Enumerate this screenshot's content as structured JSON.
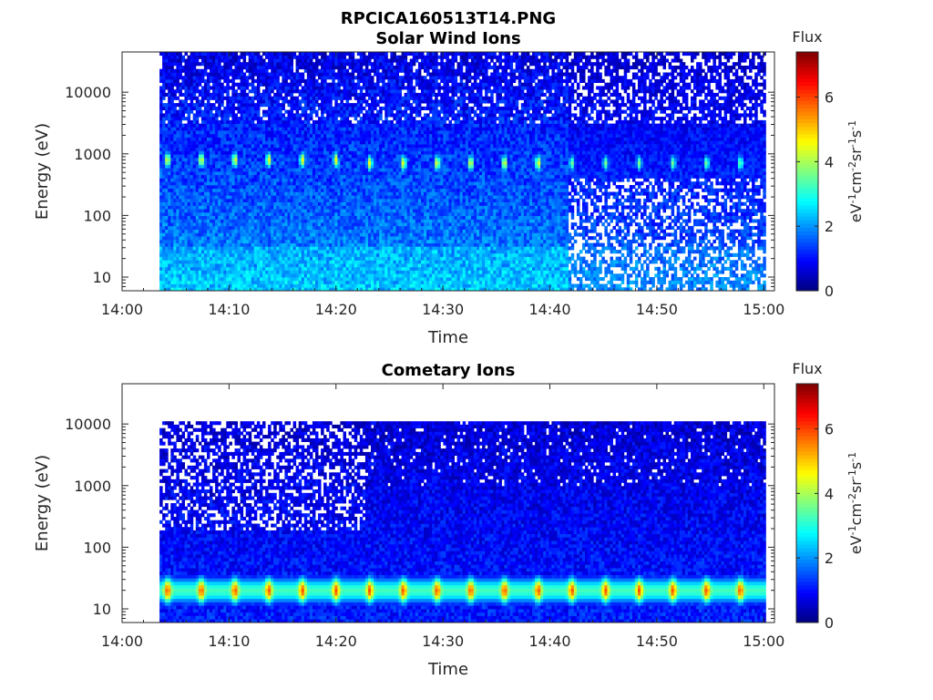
{
  "figure": {
    "title": "RPCICA160513T14.PNG"
  },
  "chart_data": [
    {
      "type": "heatmap",
      "title": "Solar Wind Ions",
      "xlabel": "Time",
      "ylabel": "Energy (eV)",
      "yscale": "log",
      "x_tick_labels": [
        "14:00",
        "14:10",
        "14:20",
        "14:30",
        "14:40",
        "14:50",
        "15:00"
      ],
      "x_ticks_min": [
        0,
        10,
        20,
        30,
        40,
        50,
        60
      ],
      "xlim_min": [
        0,
        61
      ],
      "data_start_min": 3.5,
      "y_ticks": [
        10,
        100,
        1000,
        10000
      ],
      "y_tick_labels": [
        "10",
        "100",
        "1000",
        "10000"
      ],
      "ylim": [
        6,
        45000
      ],
      "colorbar": {
        "title": "Flux",
        "label": "eV-1cm-2sr-1s-1",
        "ticks": [
          0,
          2,
          4,
          6
        ],
        "range": [
          0,
          7.4
        ]
      },
      "features": {
        "peak_energy_eV": 800,
        "peak_flux": 4.6,
        "pulse_period_min": 3.15,
        "low_energy_band_eV": [
          8,
          30
        ],
        "sparse_after_min": 41.5
      }
    },
    {
      "type": "heatmap",
      "title": "Cometary Ions",
      "xlabel": "Time",
      "ylabel": "Energy (eV)",
      "yscale": "log",
      "x_tick_labels": [
        "14:00",
        "14:10",
        "14:20",
        "14:30",
        "14:40",
        "14:50",
        "15:00"
      ],
      "x_ticks_min": [
        0,
        10,
        20,
        30,
        40,
        50,
        60
      ],
      "xlim_min": [
        0,
        61
      ],
      "data_start_min": 3.5,
      "y_ticks": [
        10,
        100,
        1000,
        10000
      ],
      "y_tick_labels": [
        "10",
        "100",
        "1000",
        "10000"
      ],
      "ylim": [
        6,
        45000
      ],
      "colorbar": {
        "title": "Flux",
        "label": "eV-1cm-2sr-1s-1",
        "ticks": [
          0,
          2,
          4,
          6
        ],
        "range": [
          0,
          7.4
        ]
      },
      "features": {
        "peak_energy_eV": 20,
        "peak_flux": 5.9,
        "pulse_period_min": 3.15,
        "max_energy_eV": 11000,
        "sparse_before_min": 22.5
      }
    }
  ],
  "colors": {
    "colormap": "jet",
    "background": "#ffffff",
    "axis": "#262626"
  }
}
